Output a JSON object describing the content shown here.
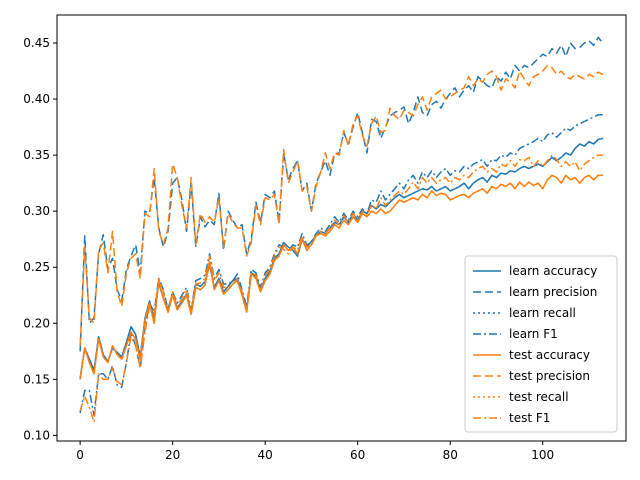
{
  "chart_data": {
    "type": "line",
    "title": "",
    "xlabel": "",
    "ylabel": "",
    "xlim": [
      -5,
      118
    ],
    "ylim": [
      0.095,
      0.475
    ],
    "xticks": [
      0,
      20,
      40,
      60,
      80,
      100
    ],
    "yticks": [
      0.1,
      0.15,
      0.2,
      0.25,
      0.3,
      0.35,
      0.4,
      0.45
    ],
    "ytick_labels": [
      "0.10",
      "0.15",
      "0.20",
      "0.25",
      "0.30",
      "0.35",
      "0.40",
      "0.45"
    ],
    "grid": false,
    "legend_position": "bottom-right",
    "colors": {
      "learn": "#1f77b4",
      "test": "#ff7f0e"
    },
    "x_step": 1,
    "series": [
      {
        "name": "learn accuracy",
        "color": "#1f77b4",
        "dash": "solid",
        "values": [
          0.151,
          0.178,
          0.168,
          0.158,
          0.188,
          0.172,
          0.166,
          0.178,
          0.174,
          0.17,
          0.183,
          0.197,
          0.19,
          0.17,
          0.204,
          0.22,
          0.204,
          0.236,
          0.222,
          0.213,
          0.225,
          0.214,
          0.219,
          0.226,
          0.21,
          0.235,
          0.233,
          0.237,
          0.252,
          0.232,
          0.24,
          0.228,
          0.233,
          0.238,
          0.24,
          0.227,
          0.211,
          0.245,
          0.242,
          0.23,
          0.24,
          0.246,
          0.258,
          0.262,
          0.272,
          0.268,
          0.265,
          0.26,
          0.275,
          0.268,
          0.273,
          0.278,
          0.282,
          0.28,
          0.285,
          0.29,
          0.288,
          0.295,
          0.29,
          0.298,
          0.292,
          0.3,
          0.298,
          0.305,
          0.302,
          0.306,
          0.304,
          0.308,
          0.312,
          0.315,
          0.312,
          0.314,
          0.316,
          0.318,
          0.32,
          0.319,
          0.322,
          0.318,
          0.32,
          0.322,
          0.318,
          0.32,
          0.322,
          0.325,
          0.32,
          0.325,
          0.328,
          0.33,
          0.326,
          0.332,
          0.33,
          0.334,
          0.333,
          0.336,
          0.335,
          0.338,
          0.34,
          0.338,
          0.34,
          0.342,
          0.34,
          0.344,
          0.348,
          0.345,
          0.348,
          0.352,
          0.35,
          0.356,
          0.36,
          0.358,
          0.362,
          0.36,
          0.364,
          0.365
        ]
      },
      {
        "name": "learn precision",
        "color": "#1f77b4",
        "dash": "8,4",
        "values": [
          0.175,
          0.278,
          0.2,
          0.205,
          0.262,
          0.279,
          0.248,
          0.258,
          0.23,
          0.22,
          0.248,
          0.26,
          0.27,
          0.245,
          0.3,
          0.298,
          0.33,
          0.285,
          0.268,
          0.282,
          0.325,
          0.33,
          0.31,
          0.282,
          0.325,
          0.268,
          0.295,
          0.286,
          0.292,
          0.288,
          0.316,
          0.265,
          0.3,
          0.292,
          0.285,
          0.288,
          0.262,
          0.275,
          0.308,
          0.29,
          0.315,
          0.312,
          0.318,
          0.29,
          0.352,
          0.328,
          0.338,
          0.345,
          0.318,
          0.325,
          0.3,
          0.325,
          0.335,
          0.345,
          0.332,
          0.351,
          0.352,
          0.37,
          0.36,
          0.375,
          0.388,
          0.37,
          0.352,
          0.382,
          0.38,
          0.365,
          0.375,
          0.385,
          0.388,
          0.39,
          0.393,
          0.378,
          0.388,
          0.402,
          0.388,
          0.385,
          0.395,
          0.398,
          0.392,
          0.4,
          0.405,
          0.41,
          0.402,
          0.408,
          0.412,
          0.406,
          0.42,
          0.416,
          0.412,
          0.41,
          0.42,
          0.416,
          0.424,
          0.418,
          0.43,
          0.425,
          0.43,
          0.428,
          0.432,
          0.436,
          0.44,
          0.438,
          0.445,
          0.441,
          0.448,
          0.438,
          0.45,
          0.445,
          0.446,
          0.45,
          0.452,
          0.448,
          0.455,
          0.45
        ]
      },
      {
        "name": "learn recall",
        "color": "#1f77b4",
        "dash": "2,3",
        "values": [
          0.151,
          0.178,
          0.168,
          0.158,
          0.188,
          0.172,
          0.166,
          0.178,
          0.174,
          0.17,
          0.183,
          0.197,
          0.19,
          0.17,
          0.204,
          0.22,
          0.204,
          0.236,
          0.222,
          0.213,
          0.225,
          0.214,
          0.219,
          0.226,
          0.21,
          0.235,
          0.233,
          0.237,
          0.252,
          0.232,
          0.24,
          0.228,
          0.233,
          0.238,
          0.24,
          0.227,
          0.211,
          0.245,
          0.242,
          0.23,
          0.24,
          0.246,
          0.258,
          0.262,
          0.272,
          0.268,
          0.265,
          0.26,
          0.275,
          0.268,
          0.273,
          0.278,
          0.282,
          0.28,
          0.285,
          0.29,
          0.288,
          0.295,
          0.29,
          0.298,
          0.292,
          0.3,
          0.298,
          0.305,
          0.302,
          0.306,
          0.304,
          0.308,
          0.312,
          0.315,
          0.312,
          0.314,
          0.316,
          0.318,
          0.32,
          0.319,
          0.322,
          0.318,
          0.32,
          0.322,
          0.318,
          0.32,
          0.322,
          0.325,
          0.32,
          0.325,
          0.328,
          0.33,
          0.326,
          0.332,
          0.33,
          0.334,
          0.333,
          0.336,
          0.335,
          0.338,
          0.34,
          0.338,
          0.34,
          0.342,
          0.34,
          0.344,
          0.348,
          0.345,
          0.348,
          0.352,
          0.35,
          0.356,
          0.36,
          0.358,
          0.362,
          0.36,
          0.364,
          0.365
        ]
      },
      {
        "name": "learn F1",
        "color": "#1f77b4",
        "dash": "8,3,2,3",
        "values": [
          0.12,
          0.14,
          0.14,
          0.118,
          0.155,
          0.155,
          0.15,
          0.162,
          0.145,
          0.143,
          0.165,
          0.192,
          0.18,
          0.16,
          0.195,
          0.218,
          0.21,
          0.24,
          0.23,
          0.212,
          0.228,
          0.218,
          0.225,
          0.232,
          0.212,
          0.238,
          0.24,
          0.243,
          0.262,
          0.24,
          0.248,
          0.235,
          0.235,
          0.238,
          0.244,
          0.23,
          0.215,
          0.248,
          0.245,
          0.232,
          0.245,
          0.25,
          0.262,
          0.27,
          0.268,
          0.265,
          0.27,
          0.268,
          0.28,
          0.27,
          0.272,
          0.28,
          0.285,
          0.282,
          0.288,
          0.295,
          0.29,
          0.298,
          0.292,
          0.3,
          0.295,
          0.302,
          0.298,
          0.31,
          0.308,
          0.318,
          0.31,
          0.315,
          0.32,
          0.325,
          0.32,
          0.328,
          0.332,
          0.325,
          0.335,
          0.33,
          0.336,
          0.33,
          0.335,
          0.338,
          0.332,
          0.336,
          0.335,
          0.34,
          0.338,
          0.342,
          0.344,
          0.346,
          0.34,
          0.346,
          0.345,
          0.35,
          0.348,
          0.352,
          0.35,
          0.356,
          0.358,
          0.36,
          0.362,
          0.365,
          0.362,
          0.368,
          0.37,
          0.366,
          0.37,
          0.374,
          0.372,
          0.376,
          0.378,
          0.38,
          0.382,
          0.384,
          0.386,
          0.386
        ]
      },
      {
        "name": "test accuracy",
        "color": "#ff7f0e",
        "dash": "solid",
        "values": [
          0.15,
          0.178,
          0.165,
          0.155,
          0.186,
          0.17,
          0.165,
          0.18,
          0.172,
          0.168,
          0.18,
          0.192,
          0.186,
          0.168,
          0.202,
          0.218,
          0.2,
          0.238,
          0.222,
          0.21,
          0.225,
          0.212,
          0.218,
          0.225,
          0.208,
          0.232,
          0.23,
          0.234,
          0.255,
          0.23,
          0.238,
          0.226,
          0.23,
          0.235,
          0.238,
          0.225,
          0.21,
          0.244,
          0.24,
          0.228,
          0.238,
          0.244,
          0.256,
          0.26,
          0.27,
          0.265,
          0.268,
          0.262,
          0.275,
          0.265,
          0.27,
          0.278,
          0.28,
          0.278,
          0.282,
          0.288,
          0.285,
          0.292,
          0.288,
          0.295,
          0.29,
          0.298,
          0.295,
          0.3,
          0.298,
          0.302,
          0.298,
          0.3,
          0.305,
          0.31,
          0.308,
          0.31,
          0.312,
          0.31,
          0.315,
          0.312,
          0.318,
          0.314,
          0.316,
          0.315,
          0.31,
          0.312,
          0.314,
          0.315,
          0.312,
          0.316,
          0.318,
          0.32,
          0.316,
          0.322,
          0.32,
          0.324,
          0.322,
          0.325,
          0.32,
          0.326,
          0.322,
          0.326,
          0.323,
          0.325,
          0.32,
          0.328,
          0.332,
          0.33,
          0.325,
          0.332,
          0.328,
          0.33,
          0.325,
          0.33,
          0.332,
          0.328,
          0.332,
          0.332
        ]
      },
      {
        "name": "test precision",
        "color": "#ff7f0e",
        "dash": "8,4",
        "values": [
          0.18,
          0.268,
          0.205,
          0.2,
          0.265,
          0.272,
          0.245,
          0.282,
          0.228,
          0.215,
          0.245,
          0.258,
          0.262,
          0.24,
          0.298,
          0.295,
          0.338,
          0.282,
          0.27,
          0.285,
          0.342,
          0.33,
          0.305,
          0.285,
          0.33,
          0.27,
          0.298,
          0.29,
          0.295,
          0.29,
          0.312,
          0.268,
          0.298,
          0.29,
          0.285,
          0.285,
          0.26,
          0.272,
          0.305,
          0.288,
          0.312,
          0.31,
          0.315,
          0.288,
          0.355,
          0.325,
          0.335,
          0.345,
          0.318,
          0.322,
          0.3,
          0.322,
          0.335,
          0.352,
          0.338,
          0.352,
          0.35,
          0.372,
          0.358,
          0.378,
          0.385,
          0.368,
          0.358,
          0.378,
          0.385,
          0.37,
          0.372,
          0.392,
          0.385,
          0.382,
          0.39,
          0.388,
          0.385,
          0.395,
          0.402,
          0.39,
          0.402,
          0.405,
          0.408,
          0.4,
          0.402,
          0.405,
          0.408,
          0.41,
          0.42,
          0.412,
          0.418,
          0.415,
          0.422,
          0.425,
          0.42,
          0.408,
          0.418,
          0.415,
          0.41,
          0.425,
          0.418,
          0.412,
          0.42,
          0.422,
          0.425,
          0.43,
          0.428,
          0.422,
          0.425,
          0.42,
          0.418,
          0.422,
          0.42,
          0.418,
          0.422,
          0.42,
          0.424,
          0.422
        ]
      },
      {
        "name": "test recall",
        "color": "#ff7f0e",
        "dash": "2,3",
        "values": [
          0.15,
          0.178,
          0.165,
          0.155,
          0.186,
          0.17,
          0.165,
          0.18,
          0.172,
          0.168,
          0.18,
          0.192,
          0.186,
          0.168,
          0.202,
          0.218,
          0.2,
          0.238,
          0.222,
          0.21,
          0.225,
          0.212,
          0.218,
          0.225,
          0.208,
          0.232,
          0.23,
          0.234,
          0.255,
          0.23,
          0.238,
          0.226,
          0.23,
          0.235,
          0.238,
          0.225,
          0.21,
          0.244,
          0.24,
          0.228,
          0.238,
          0.244,
          0.256,
          0.26,
          0.27,
          0.265,
          0.268,
          0.262,
          0.275,
          0.265,
          0.27,
          0.278,
          0.28,
          0.278,
          0.282,
          0.288,
          0.285,
          0.292,
          0.288,
          0.295,
          0.29,
          0.298,
          0.295,
          0.3,
          0.298,
          0.302,
          0.298,
          0.3,
          0.305,
          0.31,
          0.308,
          0.31,
          0.312,
          0.31,
          0.315,
          0.312,
          0.318,
          0.314,
          0.316,
          0.315,
          0.31,
          0.312,
          0.314,
          0.315,
          0.312,
          0.316,
          0.318,
          0.32,
          0.316,
          0.322,
          0.32,
          0.324,
          0.322,
          0.325,
          0.32,
          0.326,
          0.322,
          0.326,
          0.323,
          0.325,
          0.32,
          0.328,
          0.332,
          0.33,
          0.325,
          0.332,
          0.328,
          0.33,
          0.325,
          0.33,
          0.332,
          0.328,
          0.332,
          0.332
        ]
      },
      {
        "name": "test F1",
        "color": "#ff7f0e",
        "dash": "8,3,2,3",
        "values": [
          0.122,
          0.135,
          0.125,
          0.112,
          0.155,
          0.15,
          0.15,
          0.16,
          0.148,
          0.145,
          0.165,
          0.188,
          0.18,
          0.16,
          0.192,
          0.215,
          0.208,
          0.24,
          0.228,
          0.21,
          0.228,
          0.215,
          0.222,
          0.23,
          0.21,
          0.235,
          0.236,
          0.24,
          0.26,
          0.238,
          0.245,
          0.232,
          0.232,
          0.235,
          0.24,
          0.228,
          0.212,
          0.245,
          0.243,
          0.23,
          0.243,
          0.248,
          0.26,
          0.268,
          0.266,
          0.262,
          0.268,
          0.265,
          0.278,
          0.268,
          0.27,
          0.278,
          0.282,
          0.28,
          0.285,
          0.292,
          0.288,
          0.296,
          0.29,
          0.298,
          0.292,
          0.3,
          0.296,
          0.306,
          0.302,
          0.312,
          0.305,
          0.31,
          0.314,
          0.318,
          0.315,
          0.32,
          0.326,
          0.32,
          0.33,
          0.325,
          0.33,
          0.325,
          0.328,
          0.33,
          0.325,
          0.33,
          0.328,
          0.332,
          0.33,
          0.335,
          0.338,
          0.34,
          0.335,
          0.338,
          0.335,
          0.342,
          0.34,
          0.345,
          0.34,
          0.346,
          0.345,
          0.348,
          0.34,
          0.345,
          0.34,
          0.345,
          0.35,
          0.346,
          0.34,
          0.344,
          0.34,
          0.344,
          0.336,
          0.342,
          0.345,
          0.348,
          0.35,
          0.35
        ]
      }
    ]
  }
}
